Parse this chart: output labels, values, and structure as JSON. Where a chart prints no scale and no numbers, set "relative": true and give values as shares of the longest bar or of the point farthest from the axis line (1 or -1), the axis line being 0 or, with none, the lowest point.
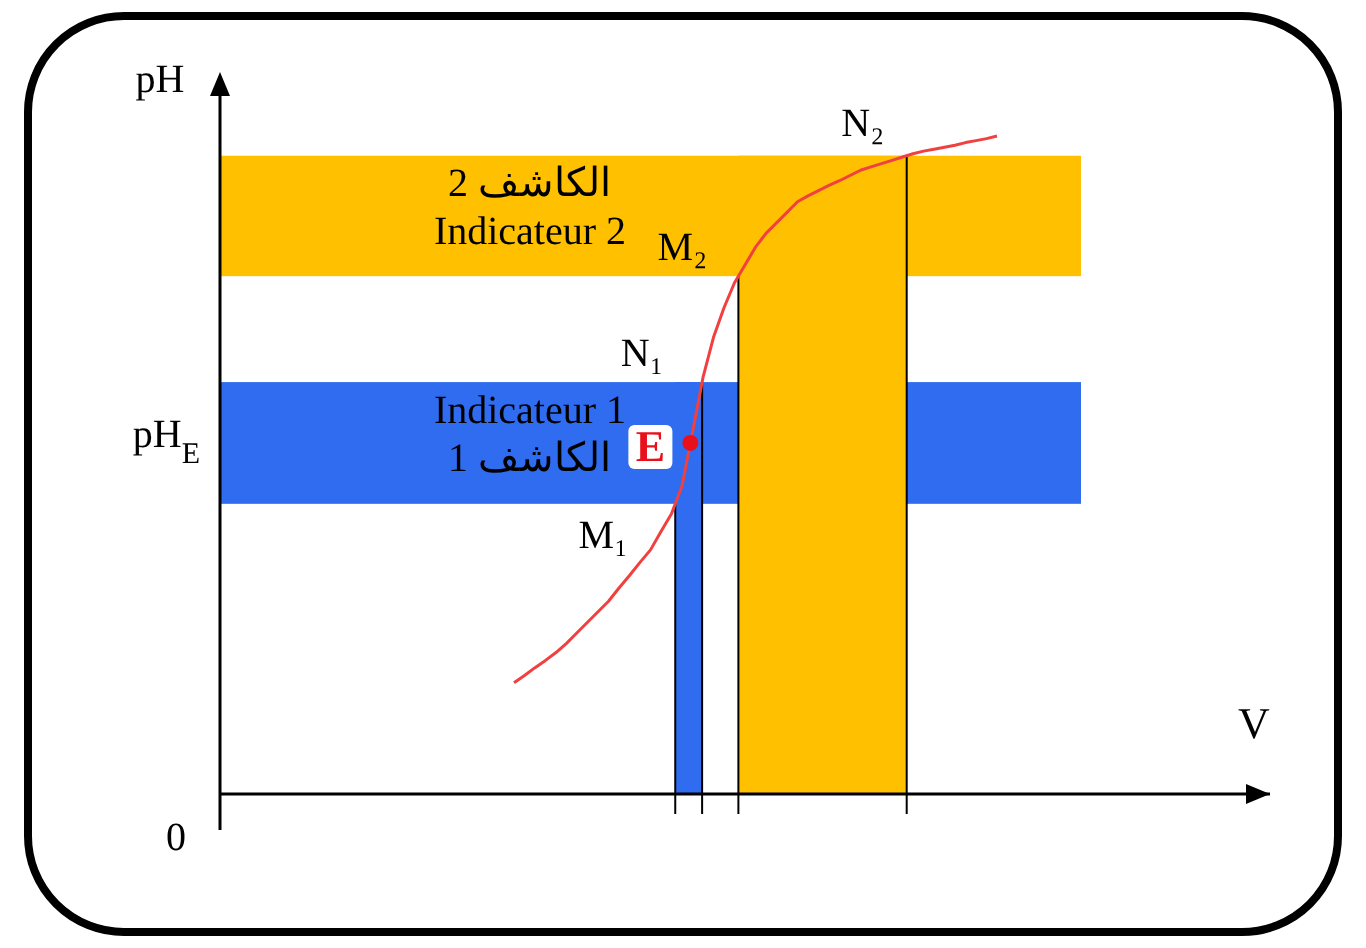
{
  "chart_data": {
    "type": "line",
    "relative": true,
    "categories": [
      null,
      null,
      null,
      null,
      null,
      null,
      null,
      null,
      null,
      null,
      null,
      null,
      null,
      null,
      null,
      null,
      null,
      null,
      null,
      null,
      null,
      null,
      null,
      null,
      null,
      null,
      null,
      null,
      null,
      null,
      null,
      null,
      null,
      null,
      null,
      null,
      null,
      null,
      null,
      null,
      null,
      null,
      null,
      null,
      null,
      null,
      null
    ],
    "series": [
      {
        "color": "#f04040",
        "values": [
          0.169,
          0.18,
          0.192,
          0.203,
          0.215,
          0.229,
          0.245,
          0.261,
          0.277,
          0.293,
          0.313,
          0.332,
          0.352,
          0.371,
          0.399,
          0.426,
          0.468,
          0.55,
          0.633,
          0.694,
          0.739,
          0.777,
          0.804,
          0.831,
          0.852,
          0.868,
          0.884,
          0.9,
          0.909,
          0.917,
          0.925,
          0.932,
          0.94,
          0.948,
          0.953,
          0.958,
          0.963,
          0.968,
          0.973,
          0.977,
          0.98,
          0.983,
          0.986,
          0.99,
          0.993,
          0.996,
          1
        ]
      }
    ],
    "bands": [
      {
        "axis": "y",
        "from": 0.787,
        "to": 0.97,
        "color": "#ffc000",
        "label": "الكاشف 2\nIndicateur 2"
      },
      {
        "axis": "y",
        "from": 0.441,
        "to": 0.626,
        "color": "#2f6cf0",
        "label": "Indicateur 1\nالكاشف 1"
      }
    ],
    "annotations": [
      "M₁",
      "N₁",
      "M₂",
      "N₂",
      "E",
      "pH$_{E}$",
      "0",
      "pH",
      "V"
    ]
  }
}
